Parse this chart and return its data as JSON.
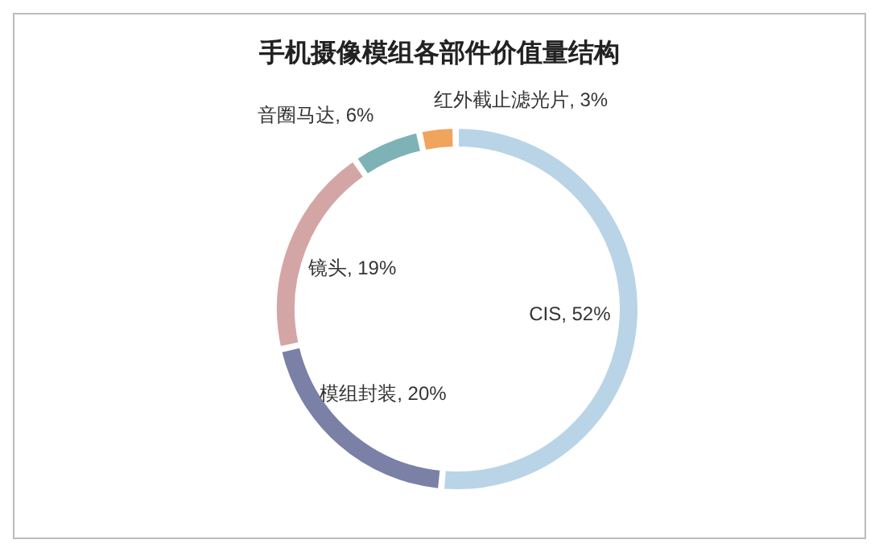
{
  "chart_data": {
    "type": "donut",
    "title": "手机摄像模组各部件价值量结构",
    "categories": [
      "CIS",
      "模组封装",
      "镜头",
      "音圈马达",
      "红外截止滤光片"
    ],
    "values": [
      52,
      20,
      19,
      6,
      3
    ],
    "colors": [
      "#b9d4e6",
      "#7a80a6",
      "#d3a6a5",
      "#7db2b6",
      "#f0a45c"
    ],
    "value_labels": [
      "52%",
      "20%",
      "19%",
      "6%",
      "3%"
    ],
    "legend": false
  }
}
